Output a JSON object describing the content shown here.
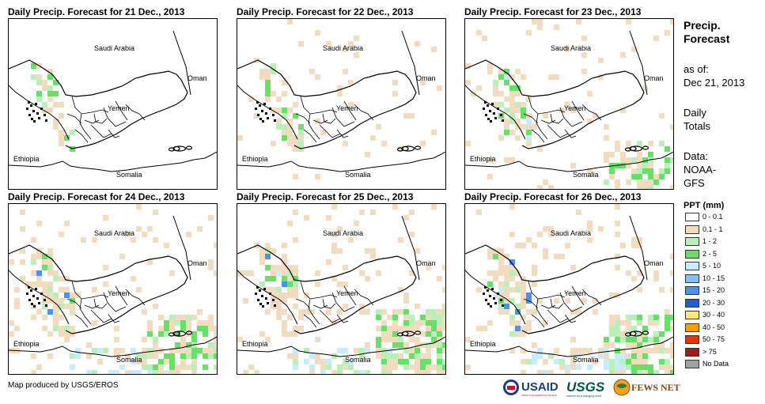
{
  "panels": [
    {
      "title": "Daily Precip. Forecast for 21 Dec., 2013",
      "level": 1
    },
    {
      "title": "Daily Precip. Forecast for 22 Dec., 2013",
      "level": 2
    },
    {
      "title": "Daily Precip. Forecast for 23 Dec., 2013",
      "level": 3
    },
    {
      "title": "Daily Precip. Forecast for 24 Dec., 2013",
      "level": 4
    },
    {
      "title": "Daily Precip. Forecast for 25 Dec., 2013",
      "level": 5
    },
    {
      "title": "Daily Precip. Forecast for 26 Dec., 2013",
      "level": 4
    }
  ],
  "map_labels": {
    "saudi": "Saudi Arabia",
    "oman": "Oman",
    "yemen": "Yemen",
    "ethiopia": "Ethiopia",
    "somalia": "Somalia"
  },
  "legend": {
    "title_1": "Precip.",
    "title_2": "Forecast",
    "asof_1": "as of:",
    "asof_2": "Dec 21, 2013",
    "daily_1": "Daily",
    "daily_2": "Totals",
    "data_1": "Data:",
    "data_2": "NOAA-",
    "data_3": "GFS",
    "ppt_title": "PPT (mm)",
    "items": [
      {
        "label": "0 - 0.1",
        "color": "#ffffff"
      },
      {
        "label": "0.1 - 1",
        "color": "#f2dcc0"
      },
      {
        "label": "1 - 2",
        "color": "#b8f0b8"
      },
      {
        "label": "2 - 5",
        "color": "#66e066"
      },
      {
        "label": "5 - 10",
        "color": "#c8ecff"
      },
      {
        "label": "10 - 15",
        "color": "#88bff2"
      },
      {
        "label": "15 - 20",
        "color": "#4c90f0"
      },
      {
        "label": "20 - 30",
        "color": "#1f5ed8"
      },
      {
        "label": "30 - 40",
        "color": "#ffe680"
      },
      {
        "label": "40 - 50",
        "color": "#ffa000"
      },
      {
        "label": "50 - 75",
        "color": "#ff2a00"
      },
      {
        "label": "> 75",
        "color": "#a01c1c"
      },
      {
        "label": "No Data",
        "color": "#a0a0a0"
      }
    ]
  },
  "footer": {
    "credit": "Map produced by USGS/EROS"
  },
  "logos": {
    "usaid": "USAID",
    "usaid_sub": "FROM THE AMERICAN PEOPLE",
    "usgs": "USGS",
    "usgs_sub": "science for a changing world",
    "fews": "FEWS NET"
  }
}
